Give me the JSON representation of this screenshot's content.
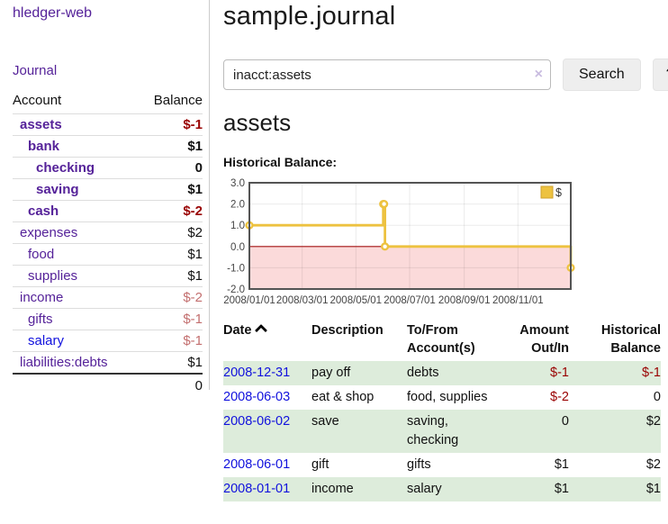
{
  "app": {
    "title": "hledger-web"
  },
  "sidebar": {
    "journal_link": "Journal",
    "accounts_header": {
      "account": "Account",
      "balance": "Balance"
    },
    "accounts": [
      {
        "name": "assets",
        "balance": "$-1",
        "depth": 1,
        "bold": true,
        "balance_style": "negative",
        "link_style": "purple"
      },
      {
        "name": "bank",
        "balance": "$1",
        "depth": 2,
        "bold": true,
        "balance_style": "normal",
        "link_style": "purple"
      },
      {
        "name": "checking",
        "balance": "0",
        "depth": 3,
        "bold": true,
        "balance_style": "normal",
        "link_style": "purple"
      },
      {
        "name": "saving",
        "balance": "$1",
        "depth": 3,
        "bold": true,
        "balance_style": "normal",
        "link_style": "purple"
      },
      {
        "name": "cash",
        "balance": "$-2",
        "depth": 2,
        "bold": true,
        "balance_style": "negative",
        "link_style": "purple"
      },
      {
        "name": "expenses",
        "balance": "$2",
        "depth": 1,
        "bold": false,
        "balance_style": "normal",
        "link_style": "purple"
      },
      {
        "name": "food",
        "balance": "$1",
        "depth": 2,
        "bold": false,
        "balance_style": "normal",
        "link_style": "purple"
      },
      {
        "name": "supplies",
        "balance": "$1",
        "depth": 2,
        "bold": false,
        "balance_style": "normal",
        "link_style": "purple"
      },
      {
        "name": "income",
        "balance": "$-2",
        "depth": 1,
        "bold": false,
        "balance_style": "negative-faded",
        "link_style": "purple"
      },
      {
        "name": "gifts",
        "balance": "$-1",
        "depth": 2,
        "bold": false,
        "balance_style": "negative-faded",
        "link_style": "purple"
      },
      {
        "name": "salary",
        "balance": "$-1",
        "depth": 2,
        "bold": false,
        "balance_style": "negative-faded",
        "link_style": "blue"
      },
      {
        "name": "liabilities:debts",
        "balance": "$1",
        "depth": 1,
        "bold": false,
        "balance_style": "normal",
        "link_style": "purple"
      }
    ],
    "total": "0"
  },
  "main": {
    "title": "sample.journal",
    "search": {
      "value": "inacct:assets",
      "clear_icon": "×",
      "button_label": "Search",
      "help_label": "?"
    },
    "account_heading": "assets"
  },
  "chart_data": {
    "type": "line",
    "title": "Historical Balance:",
    "step": true,
    "series": [
      {
        "name": "$",
        "points": [
          {
            "x": "2008-01-01",
            "y": 1
          },
          {
            "x": "2008-06-01",
            "y": 2
          },
          {
            "x": "2008-06-02",
            "y": 2
          },
          {
            "x": "2008-06-03",
            "y": 0
          },
          {
            "x": "2008-12-31",
            "y": -1
          }
        ]
      }
    ],
    "xlim": [
      "2008-01-01",
      "2008-12-31"
    ],
    "ylim": [
      -2,
      3
    ],
    "x_ticks": [
      "2008/01/01",
      "2008/03/01",
      "2008/05/01",
      "2008/07/01",
      "2008/09/01",
      "2008/11/01"
    ],
    "y_ticks": [
      "3.0",
      "2.0",
      "1.0",
      "0.0",
      "-1.0",
      "-2.0"
    ],
    "grid": true,
    "legend": {
      "label": "$",
      "position": "top-right"
    },
    "colors": {
      "line": "#edc240",
      "negative_region": "#fbdada",
      "zero_line": "#a51515",
      "border": "#545454",
      "gridline": "rgba(0,0,0,0.08)"
    }
  },
  "register_table": {
    "headers": [
      {
        "key": "date",
        "label": "Date",
        "align": "left",
        "sorted": "asc"
      },
      {
        "key": "description",
        "label": "Description",
        "align": "left"
      },
      {
        "key": "accounts",
        "label": "To/From Account(s)",
        "align": "left"
      },
      {
        "key": "amount",
        "label": "Amount Out/In",
        "align": "right"
      },
      {
        "key": "balance",
        "label": "Historical Balance",
        "align": "right"
      }
    ],
    "rows": [
      {
        "date": "2008-12-31",
        "description": "pay off",
        "accounts": "debts",
        "amount": "$-1",
        "balance": "$-1",
        "amount_negative": true,
        "balance_negative": true,
        "shaded": true
      },
      {
        "date": "2008-06-03",
        "description": "eat & shop",
        "accounts": "food, supplies",
        "amount": "$-2",
        "balance": "0",
        "amount_negative": true,
        "balance_negative": false,
        "shaded": false
      },
      {
        "date": "2008-06-02",
        "description": "save",
        "accounts": "saving, checking",
        "amount": "0",
        "balance": "$2",
        "amount_negative": false,
        "balance_negative": false,
        "shaded": true
      },
      {
        "date": "2008-06-01",
        "description": "gift",
        "accounts": "gifts",
        "amount": "$1",
        "balance": "$2",
        "amount_negative": false,
        "balance_negative": false,
        "shaded": false
      },
      {
        "date": "2008-01-01",
        "description": "income",
        "accounts": "salary",
        "amount": "$1",
        "balance": "$1",
        "amount_negative": false,
        "balance_negative": false,
        "shaded": true
      }
    ]
  },
  "colors": {
    "accent_purple": "#552299",
    "link_blue": "#1111dd",
    "negative": "#990000",
    "negative_faded": "#c36f6f",
    "row_shade_green": "#ddecdb",
    "button_bg": "#eeeeee"
  }
}
